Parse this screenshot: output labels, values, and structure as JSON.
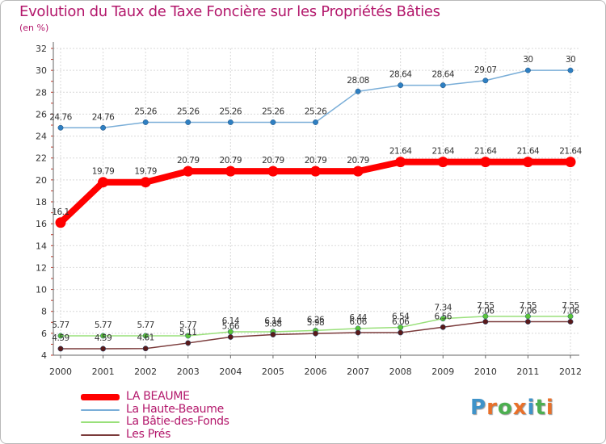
{
  "title": "Evolution du Taux de Taxe Foncière sur les Propriétés Bâties",
  "subtitle": "(en %)",
  "logo": {
    "text": "ProXiti",
    "letters": [
      "P",
      "r",
      "o",
      "x",
      "i",
      "t",
      "i"
    ],
    "colors": [
      "#3f93c9",
      "#e8702a",
      "#4caf50",
      "#e8702a",
      "#3f93c9",
      "#4caf50",
      "#e8702a"
    ]
  },
  "chart_data": {
    "type": "line",
    "x": [
      "2000",
      "2001",
      "2002",
      "2003",
      "2004",
      "2005",
      "2006",
      "2007",
      "2008",
      "2009",
      "2010",
      "2011",
      "2012"
    ],
    "ylim": [
      4,
      32
    ],
    "yticks": [
      "4",
      "6",
      "8",
      "10",
      "12",
      "14",
      "16",
      "18",
      "20",
      "22",
      "24",
      "26",
      "28",
      "30",
      "32"
    ],
    "grid": true,
    "legend": "bottom-left",
    "series": [
      {
        "name": "La Haute-Beaume",
        "color": "#7aaed8",
        "marker": "#2e7fc2",
        "width": 1.5,
        "values": [
          24.76,
          24.76,
          25.26,
          25.26,
          25.26,
          25.26,
          25.26,
          28.08,
          28.64,
          28.64,
          29.07,
          30,
          30
        ],
        "labels": [
          "24.76",
          "24.76",
          "25.26",
          "25.26",
          "25.26",
          "25.26",
          "25.26",
          "28.08",
          "28.64",
          "28.64",
          "29.07",
          "30",
          "30"
        ]
      },
      {
        "name": "LA BEAUME",
        "color": "#ff0000",
        "marker": "#ff0000",
        "width": 8,
        "values": [
          16.1,
          19.79,
          19.79,
          20.79,
          20.79,
          20.79,
          20.79,
          20.79,
          21.64,
          21.64,
          21.64,
          21.64,
          21.64
        ],
        "labels": [
          "16.1",
          "19.79",
          "19.79",
          "20.79",
          "20.79",
          "20.79",
          "20.79",
          "20.79",
          "21.64",
          "21.64",
          "21.64",
          "21.64",
          "21.64"
        ]
      },
      {
        "name": "La Bâtie-des-Fonds",
        "color": "#99e07a",
        "marker": "#5cc43a",
        "width": 1.5,
        "values": [
          5.77,
          5.77,
          5.77,
          5.77,
          6.14,
          6.14,
          6.26,
          6.44,
          6.54,
          7.34,
          7.55,
          7.55,
          7.55
        ],
        "labels": [
          "5.77",
          "5.77",
          "5.77",
          "5.77",
          "6.14",
          "6.14",
          "6.26",
          "6.44",
          "6.54",
          "7.34",
          "7.55",
          "7.55",
          "7.55"
        ]
      },
      {
        "name": "Les Prés",
        "color": "#7a3a3a",
        "marker": "#5a1a1a",
        "width": 1.5,
        "values": [
          4.59,
          4.59,
          4.61,
          5.11,
          5.66,
          5.88,
          5.98,
          6.06,
          6.06,
          6.56,
          7.06,
          7.06,
          7.06
        ],
        "labels": [
          "4.59",
          "4.59",
          "4.61",
          "5.11",
          "5.66",
          "5.88",
          "5.98",
          "6.06",
          "6.06",
          "6.56",
          "7.06",
          "7.06",
          "7.06"
        ]
      }
    ],
    "legend_order": [
      "LA BEAUME",
      "La Haute-Beaume",
      "La Bâtie-des-Fonds",
      "Les Prés"
    ]
  }
}
